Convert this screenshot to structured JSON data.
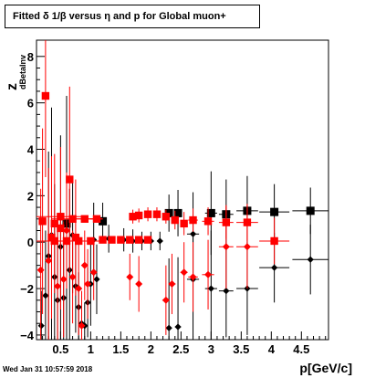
{
  "title": "Fitted δ 1/β versus η and p for Global muon+",
  "timestamp": "Wed Jan 31 10:57:59 2018",
  "chart_data": {
    "type": "scatter",
    "xlabel": "p[GeV/c]",
    "ylabel_main": "z",
    "ylabel_sub": "dBetaInv",
    "xlim": [
      0.1,
      4.95
    ],
    "ylim": [
      -4.2,
      8.7
    ],
    "x_ticks": [
      0.5,
      1,
      1.5,
      2,
      2.5,
      3,
      3.5,
      4,
      4.5
    ],
    "x_tick_labels": [
      "0.5",
      "1",
      "1.5",
      "2",
      "2.5",
      "3",
      "3.5",
      "4",
      "4.5"
    ],
    "y_ticks": [
      -4,
      -2,
      0,
      2,
      4,
      6,
      8
    ],
    "y_tick_labels": [
      "−4",
      "−2",
      "0",
      "2",
      "4",
      "6",
      "8"
    ],
    "colors": {
      "black": "#000000",
      "red": "#ff0000"
    },
    "series": [
      {
        "color": "#000000",
        "points": [
          {
            "x": 0.18,
            "y": -3.6,
            "xe": 0.03,
            "ye": 1.5
          },
          {
            "x": 0.25,
            "y": -2.3,
            "xe": 0.03,
            "ye": 2.8
          },
          {
            "x": 0.3,
            "y": -0.6,
            "xe": 0.03,
            "ye": 4.5
          },
          {
            "x": 0.35,
            "y": 0.3,
            "xe": 0.03,
            "ye": 5.5
          },
          {
            "x": 0.4,
            "y": -1.5,
            "xe": 0.03,
            "ye": 4
          },
          {
            "x": 0.45,
            "y": -2.5,
            "xe": 0.03,
            "ye": 3
          },
          {
            "x": 0.5,
            "y": -0.2,
            "xe": 0.03,
            "ye": 4.8
          },
          {
            "x": 0.55,
            "y": -2.4,
            "xe": 0.03,
            "ye": 3
          },
          {
            "x": 0.6,
            "y": 0.8,
            "xe": 0.03,
            "ye": 5.5
          },
          {
            "x": 0.65,
            "y": -1.2,
            "xe": 0.03,
            "ye": 3.5
          },
          {
            "x": 0.7,
            "y": 0.3,
            "xe": 0.03,
            "ye": 2.5
          },
          {
            "x": 0.75,
            "y": -1.9,
            "xe": 0.03,
            "ye": 2
          },
          {
            "x": 0.8,
            "y": -2.8,
            "xe": 0.03,
            "ye": 1.5
          },
          {
            "x": 0.85,
            "y": -3.5,
            "xe": 0.03,
            "ye": 1.2
          },
          {
            "x": 0.9,
            "y": -3.6,
            "xe": 0.03,
            "ye": 1
          },
          {
            "x": 0.95,
            "y": -2.6,
            "xe": 0.03,
            "ye": 1.5
          },
          {
            "x": 1.0,
            "y": -1.8,
            "xe": 0.03,
            "ye": 1.8
          },
          {
            "x": 1.05,
            "y": 0.1,
            "xe": 0.03,
            "ye": 1.6
          },
          {
            "x": 1.1,
            "y": -1.6,
            "xe": 0.03,
            "ye": 1.5
          },
          {
            "x": 1.2,
            "y": 0.9,
            "xe": 0.05,
            "ye": 0.8
          },
          {
            "x": 1.3,
            "y": 0.15,
            "xe": 0.05,
            "ye": 0.6
          },
          {
            "x": 1.55,
            "y": 0.1,
            "xe": 0.05,
            "ye": 0.5
          },
          {
            "x": 1.7,
            "y": 0.05,
            "xe": 0.05,
            "ye": 0.5
          },
          {
            "x": 1.85,
            "y": 0.05,
            "xe": 0.05,
            "ye": 0.4
          },
          {
            "x": 2.0,
            "y": 0.05,
            "xe": 0.05,
            "ye": 0.4
          },
          {
            "x": 2.15,
            "y": 0.05,
            "xe": 0.05,
            "ye": 0.4
          },
          {
            "x": 2.3,
            "y": 1.25,
            "xe": 0.05,
            "ye": 0.8
          },
          {
            "x": 2.3,
            "y": -3.7,
            "xe": 0.05,
            "ye": 3
          },
          {
            "x": 2.45,
            "y": 1.25,
            "xe": 0.05,
            "ye": 1
          },
          {
            "x": 2.45,
            "y": -3.65,
            "xe": 0.05,
            "ye": 3
          },
          {
            "x": 2.7,
            "y": 0.35,
            "xe": 0.1,
            "ye": 1.8
          },
          {
            "x": 2.7,
            "y": -1.6,
            "xe": 0.1,
            "ye": 2.5
          },
          {
            "x": 3.0,
            "y": 1.25,
            "xe": 0.1,
            "ye": 1.8
          },
          {
            "x": 3.0,
            "y": -2.0,
            "xe": 0.1,
            "ye": 2.5
          },
          {
            "x": 3.25,
            "y": 1.2,
            "xe": 0.12,
            "ye": 1.5
          },
          {
            "x": 3.25,
            "y": -2.1,
            "xe": 0.12,
            "ye": 2
          },
          {
            "x": 3.6,
            "y": 1.35,
            "xe": 0.18,
            "ye": 1.5
          },
          {
            "x": 3.6,
            "y": -2.0,
            "xe": 0.18,
            "ye": 2
          },
          {
            "x": 4.05,
            "y": 1.3,
            "xe": 0.25,
            "ye": 1.2
          },
          {
            "x": 4.05,
            "y": -1.1,
            "xe": 0.25,
            "ye": 1.5
          },
          {
            "x": 4.65,
            "y": 1.35,
            "xe": 0.3,
            "ye": 1
          },
          {
            "x": 4.65,
            "y": -0.75,
            "xe": 0.3,
            "ye": 1.5
          }
        ]
      },
      {
        "color": "#ff0000",
        "points": [
          {
            "x": 0.17,
            "y": -1.2,
            "xe": 0.03,
            "ye": 3.5
          },
          {
            "x": 0.2,
            "y": 0.9,
            "xe": 0.03,
            "ye": 4
          },
          {
            "x": 0.25,
            "y": 6.3,
            "xe": 0.03,
            "ye": 3.5
          },
          {
            "x": 0.3,
            "y": -0.8,
            "xe": 0.03,
            "ye": 4
          },
          {
            "x": 0.35,
            "y": 0.2,
            "xe": 0.03,
            "ye": 3.5
          },
          {
            "x": 0.4,
            "y": 0.8,
            "xe": 0.03,
            "ye": 3
          },
          {
            "x": 0.45,
            "y": -1.9,
            "xe": 0.03,
            "ye": 2.5
          },
          {
            "x": 0.5,
            "y": 0.6,
            "xe": 0.03,
            "ye": 3.5
          },
          {
            "x": 0.55,
            "y": -1.6,
            "xe": 0.03,
            "ye": 2.5
          },
          {
            "x": 0.6,
            "y": 0.5,
            "xe": 0.03,
            "ye": 2.5
          },
          {
            "x": 0.65,
            "y": 2.7,
            "xe": 0.03,
            "ye": 4
          },
          {
            "x": 0.7,
            "y": -1.5,
            "xe": 0.03,
            "ye": 2
          },
          {
            "x": 0.75,
            "y": 0.2,
            "xe": 0.03,
            "ye": 2.5
          },
          {
            "x": 0.8,
            "y": -2.0,
            "xe": 0.03,
            "ye": 2
          },
          {
            "x": 0.85,
            "y": -3.6,
            "xe": 0.03,
            "ye": 1.5
          },
          {
            "x": 0.9,
            "y": -1.0,
            "xe": 0.03,
            "ye": 1.5
          },
          {
            "x": 0.95,
            "y": -1.8,
            "xe": 0.03,
            "ye": 1.5
          },
          {
            "x": 1.05,
            "y": -1.3,
            "xe": 0.03,
            "ye": 1.2
          },
          {
            "x": 0.5,
            "y": 1.1,
            "xe": 0.4,
            "ye": 0.1
          },
          {
            "x": 0.7,
            "y": 1.0,
            "xe": 0.35,
            "ye": 0.1
          },
          {
            "x": 0.9,
            "y": 1.0,
            "xe": 0.3,
            "ye": 0.1
          },
          {
            "x": 1.1,
            "y": 1.0,
            "xe": 0.1,
            "ye": 0.1
          },
          {
            "x": 0.4,
            "y": 0.05,
            "xe": 0.35,
            "ye": 0.1
          },
          {
            "x": 0.6,
            "y": 0.05,
            "xe": 0.35,
            "ye": 0.1
          },
          {
            "x": 0.8,
            "y": 0.05,
            "xe": 0.3,
            "ye": 0.1
          },
          {
            "x": 1.0,
            "y": 0.05,
            "xe": 0.2,
            "ye": 0.1
          },
          {
            "x": 1.2,
            "y": 0.1,
            "xe": 0.06,
            "ye": 0.1
          },
          {
            "x": 1.35,
            "y": 0.1,
            "xe": 0.06,
            "ye": 0.1
          },
          {
            "x": 1.5,
            "y": 0.1,
            "xe": 0.06,
            "ye": 0.1
          },
          {
            "x": 1.65,
            "y": 0.1,
            "xe": 0.06,
            "ye": 0.1
          },
          {
            "x": 1.8,
            "y": 0.1,
            "xe": 0.06,
            "ye": 0.1
          },
          {
            "x": 1.95,
            "y": 0.1,
            "xe": 0.06,
            "ye": 0.1
          },
          {
            "x": 1.7,
            "y": 1.1,
            "xe": 0.06,
            "ye": 0.3
          },
          {
            "x": 1.8,
            "y": 1.15,
            "xe": 0.06,
            "ye": 0.3
          },
          {
            "x": 1.95,
            "y": 1.2,
            "xe": 0.06,
            "ye": 0.3
          },
          {
            "x": 2.1,
            "y": 1.2,
            "xe": 0.06,
            "ye": 0.3
          },
          {
            "x": 2.25,
            "y": 1.1,
            "xe": 0.06,
            "ye": 0.3
          },
          {
            "x": 2.4,
            "y": 0.95,
            "xe": 0.06,
            "ye": 0.4
          },
          {
            "x": 2.55,
            "y": 0.8,
            "xe": 0.06,
            "ye": 0.5
          },
          {
            "x": 2.7,
            "y": 0.95,
            "xe": 0.08,
            "ye": 0.5
          },
          {
            "x": 2.95,
            "y": 0.9,
            "xe": 0.1,
            "ye": 0.6
          },
          {
            "x": 3.25,
            "y": 0.85,
            "xe": 0.12,
            "ye": 0.7
          },
          {
            "x": 3.6,
            "y": 0.85,
            "xe": 0.18,
            "ye": 0.8
          },
          {
            "x": 4.05,
            "y": 0.05,
            "xe": 0.25,
            "ye": 1
          },
          {
            "x": 1.65,
            "y": -1.5,
            "xe": 0.05,
            "ye": 1
          },
          {
            "x": 1.8,
            "y": -1.8,
            "xe": 0.05,
            "ye": 1.2
          },
          {
            "x": 2.25,
            "y": -2.5,
            "xe": 0.06,
            "ye": 1.5
          },
          {
            "x": 2.35,
            "y": -1.8,
            "xe": 0.06,
            "ye": 1.3
          },
          {
            "x": 2.55,
            "y": -1.3,
            "xe": 0.06,
            "ye": 1.3
          },
          {
            "x": 2.7,
            "y": -1.5,
            "xe": 0.08,
            "ye": 1.5
          },
          {
            "x": 2.95,
            "y": -1.4,
            "xe": 0.1,
            "ye": 1.5
          },
          {
            "x": 3.25,
            "y": -0.2,
            "xe": 0.12,
            "ye": 1.8
          },
          {
            "x": 3.6,
            "y": -0.2,
            "xe": 0.18,
            "ye": 1.8
          }
        ]
      }
    ]
  }
}
